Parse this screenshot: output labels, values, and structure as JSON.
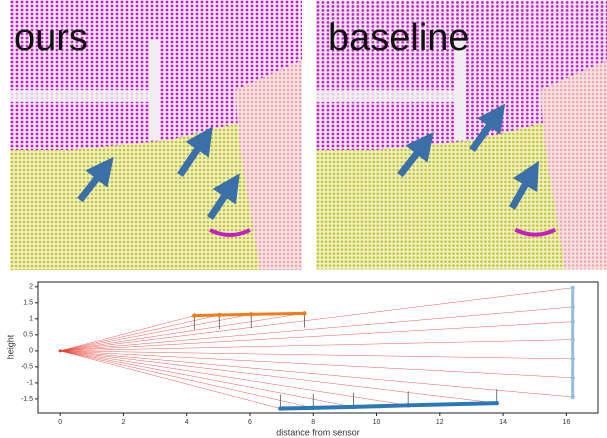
{
  "panels": [
    {
      "label": "ours"
    },
    {
      "label": "baseline"
    }
  ],
  "chart_data": {
    "type": "line",
    "xlabel": "distance from sensor",
    "ylabel": "height",
    "xlim": [
      -0.7,
      17.0
    ],
    "ylim": [
      -1.94,
      2.15
    ],
    "xticks": [
      0,
      2,
      4,
      6,
      8,
      10,
      12,
      14,
      16
    ],
    "yticks": [
      -1.5,
      -1.0,
      -0.5,
      0.0,
      0.5,
      1.0,
      1.5,
      2.0
    ],
    "sensor": {
      "x": 0,
      "y": 0,
      "color": "#e8322a"
    },
    "series": [
      {
        "color": "#f07d1a",
        "x": [
          4.24,
          5.03,
          6.04,
          7.72
        ],
        "values": [
          1.1,
          1.12,
          1.14,
          1.17
        ]
      },
      {
        "color": "#2a78b8",
        "x": [
          6.96,
          8.0,
          9.27,
          11.0,
          13.8
        ],
        "values": [
          -1.8,
          -1.78,
          -1.75,
          -1.7,
          -1.63
        ]
      },
      {
        "color": "#9bbddc",
        "x": [
          16.2,
          16.2,
          16.2,
          16.2,
          16.2,
          16.2,
          16.2
        ],
        "values": [
          1.97,
          1.37,
          0.91,
          0.35,
          -0.25,
          -0.84,
          -1.44
        ]
      }
    ]
  }
}
